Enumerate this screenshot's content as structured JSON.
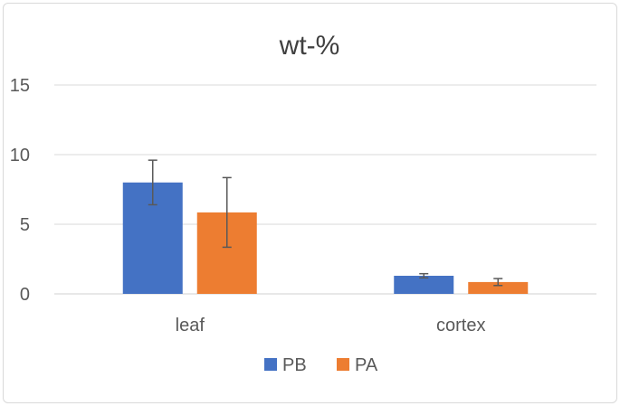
{
  "chart_data": {
    "type": "bar",
    "title": "wt-%",
    "xlabel": "",
    "ylabel": "",
    "categories": [
      "leaf",
      "cortex"
    ],
    "series": [
      {
        "name": "PB",
        "values": [
          8.0,
          1.3
        ],
        "errors": [
          1.6,
          0.15
        ],
        "color": "#4472c4"
      },
      {
        "name": "PA",
        "values": [
          5.85,
          0.85
        ],
        "errors": [
          2.5,
          0.25
        ],
        "color": "#ed7d31"
      }
    ],
    "ylim": [
      0,
      15
    ],
    "yticks": [
      0,
      5,
      10,
      15
    ],
    "ytick_labels": [
      "0",
      "5",
      "10",
      "15"
    ],
    "grid": true,
    "legend": "bottom"
  }
}
